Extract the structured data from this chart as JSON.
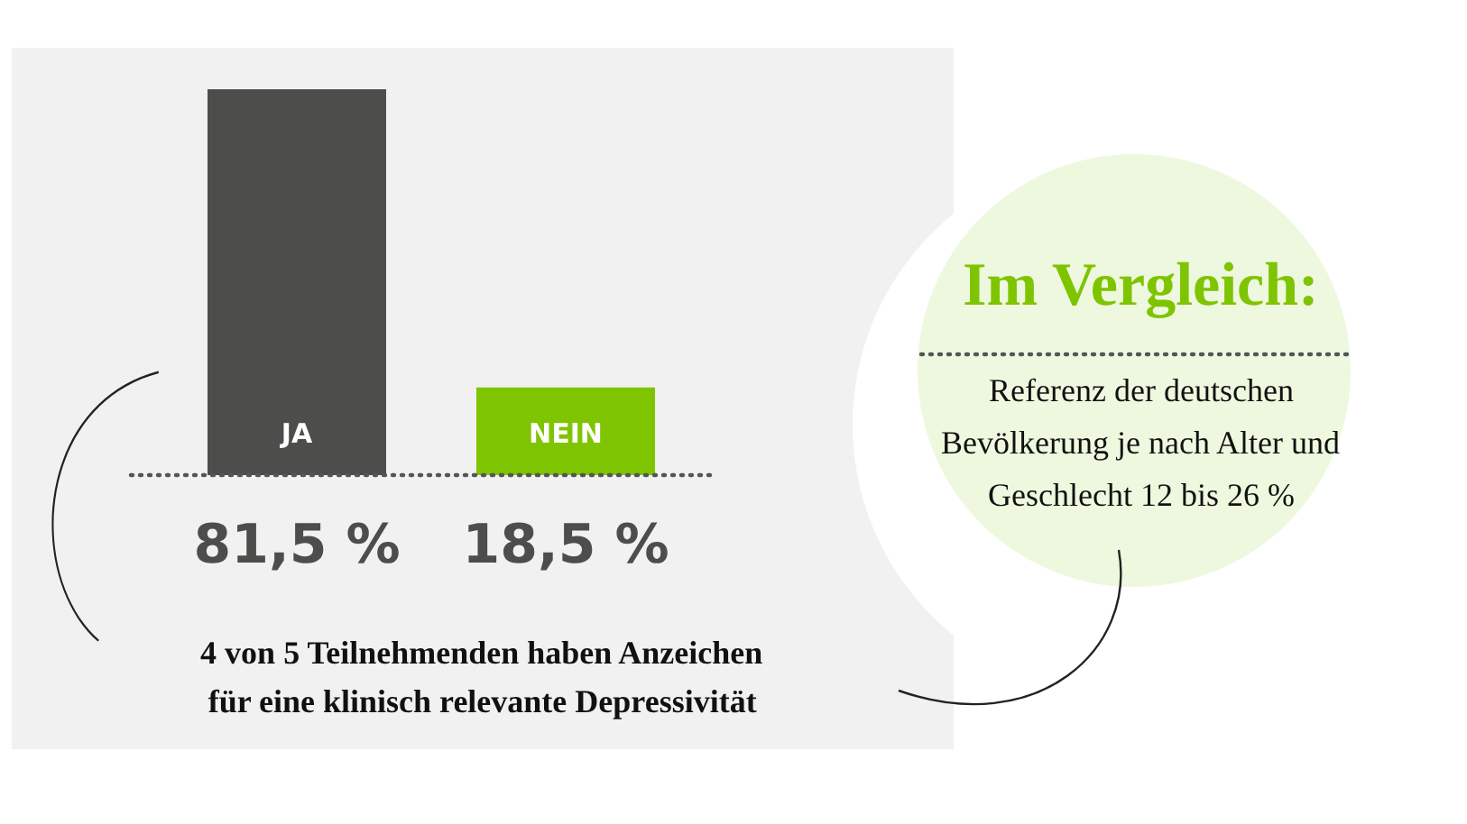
{
  "chart_data": {
    "type": "bar",
    "categories": [
      "JA",
      "NEIN"
    ],
    "values": [
      81.5,
      18.5
    ],
    "colors": [
      "#4d4d4c",
      "#7fc400"
    ],
    "value_labels": [
      "81,5 %",
      "18,5 %"
    ],
    "annotations": [
      "4 von 5 Teilnehmenden haben Anzeichen\nfür eine klinisch relevante Depressivität",
      "Im Vergleich:",
      "Referenz der deutschen\nBevölkerung je nach Alter und\nGeschlecht 12 bis 26 %"
    ]
  }
}
